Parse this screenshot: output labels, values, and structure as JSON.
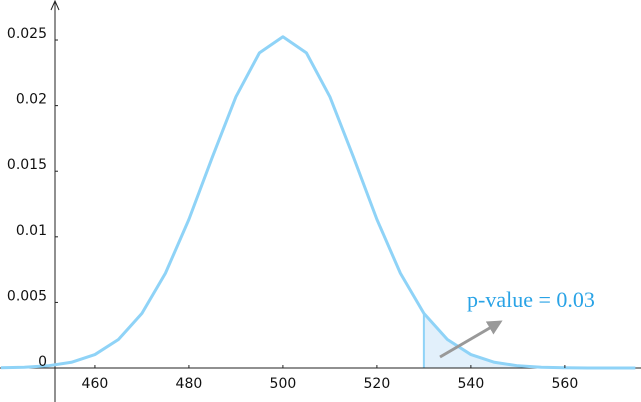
{
  "chart_data": {
    "type": "line",
    "x": [
      440,
      445,
      450,
      455,
      460,
      465,
      470,
      475,
      480,
      485,
      490,
      495,
      500,
      505,
      510,
      515,
      520,
      525,
      530,
      535,
      540,
      545,
      550,
      555,
      560,
      565,
      570,
      575
    ],
    "values": [
      1.86e-05,
      5.91e-05,
      0.000169,
      0.000437,
      0.001025,
      0.002172,
      0.004161,
      0.007221,
      0.01133,
      0.01609,
      0.02067,
      0.02402,
      0.02525,
      0.02402,
      0.02067,
      0.01609,
      0.01133,
      0.007221,
      0.004161,
      0.002172,
      0.001025,
      0.000437,
      0.000169,
      5.91e-05,
      1.86e-05,
      5.3e-06,
      1.4e-06,
      3e-07
    ],
    "color": "#8fd3f7",
    "shade_from": 530,
    "shade_color": "#e2f0fb",
    "annotation": "p-value = 0.03",
    "xlim": [
      439.8,
      576.2
    ],
    "ylim": [
      -0.00259,
      0.02805
    ],
    "xticks": [
      460,
      480,
      500,
      520,
      540,
      560
    ],
    "yticks": [
      0,
      0.005,
      0.01,
      0.015,
      0.02,
      0.025
    ],
    "grid": false
  }
}
